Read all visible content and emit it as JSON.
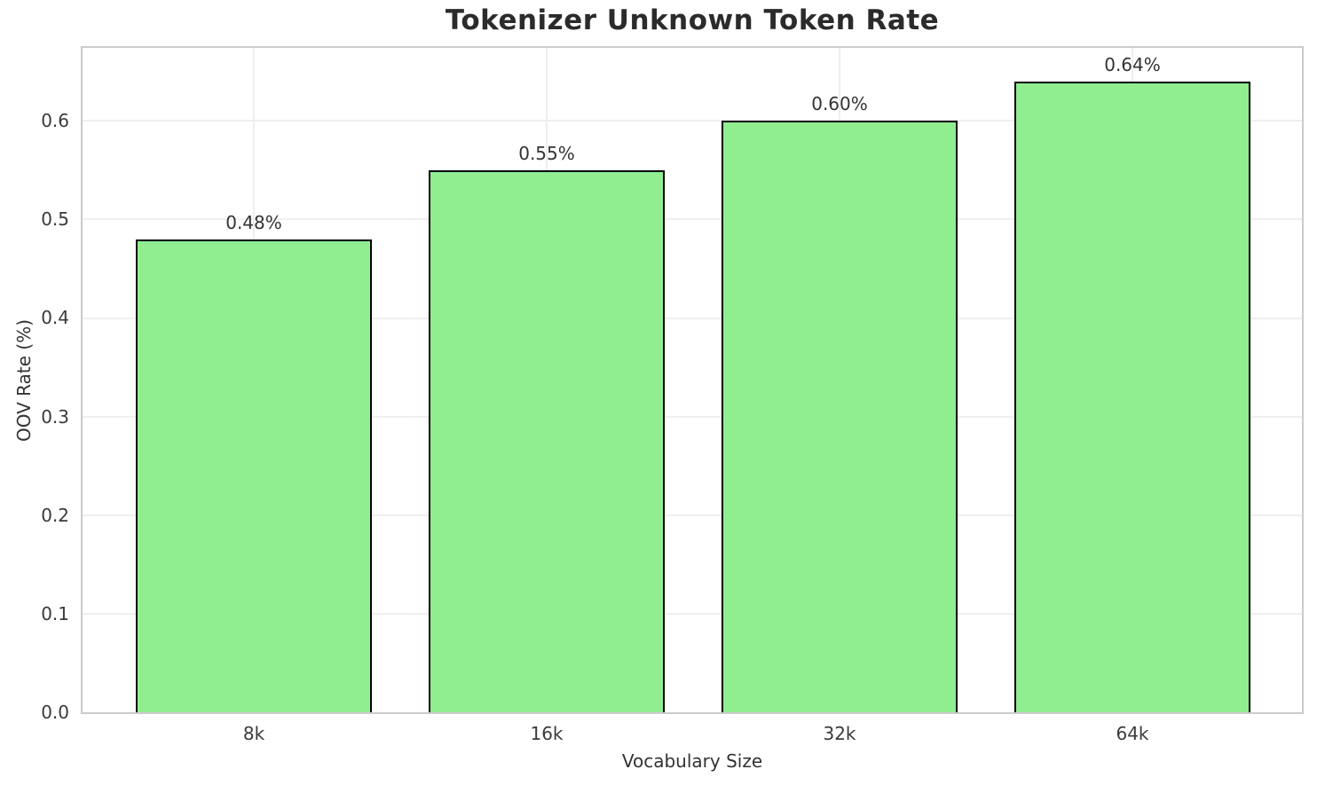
{
  "title": "Tokenizer Unknown Token Rate",
  "chart_data": {
    "type": "bar",
    "title": "Tokenizer Unknown Token Rate",
    "categories": [
      "8k",
      "16k",
      "32k",
      "64k"
    ],
    "values": [
      0.48,
      0.55,
      0.6,
      0.64
    ],
    "bar_labels": [
      "0.48%",
      "0.55%",
      "0.60%",
      "0.64%"
    ],
    "xlabel": "Vocabulary Size",
    "ylabel": "OOV Rate (%)",
    "ylim": [
      0,
      0.674
    ],
    "yticks": [
      "0.0",
      "0.1",
      "0.2",
      "0.3",
      "0.4",
      "0.5",
      "0.6"
    ],
    "ytick_values": [
      0.0,
      0.1,
      0.2,
      0.3,
      0.4,
      0.5,
      0.6
    ],
    "grid": true,
    "legend": "none",
    "colors": {
      "bar_fill": "#90EE90",
      "bar_edge": "#000000",
      "grid": "#efefef",
      "spine": "#cccccc",
      "text": "#333333",
      "title": "#2b2b2b",
      "background": "#ffffff"
    }
  }
}
